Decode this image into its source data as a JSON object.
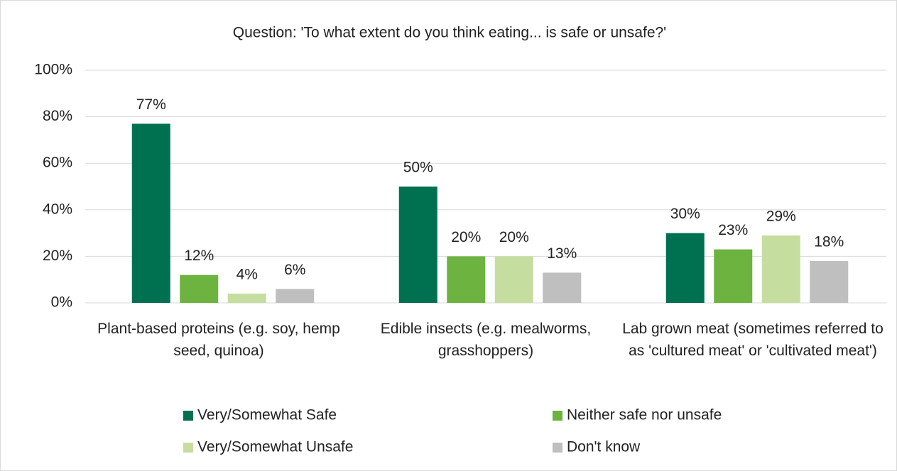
{
  "chart_data": {
    "type": "bar",
    "title": "Question: 'To what extent do you think eating... is safe or unsafe?'",
    "categories": [
      "Plant-based proteins (e.g. soy, hemp seed, quinoa)",
      "Edible insects (e.g. mealworms, grasshoppers)",
      "Lab grown meat (sometimes referred to as 'cultured meat' or 'cultivated meat')"
    ],
    "series": [
      {
        "name": "Very/Somewhat Safe",
        "color": "#007150",
        "values": [
          77,
          50,
          30
        ],
        "value_labels": [
          "77%",
          "50%",
          "30%"
        ]
      },
      {
        "name": "Neither safe nor unsafe",
        "color": "#6db33f",
        "values": [
          12,
          20,
          23
        ],
        "value_labels": [
          "12%",
          "20%",
          "23%"
        ]
      },
      {
        "name": "Very/Somewhat Unsafe",
        "color": "#c5dea0",
        "values": [
          4,
          20,
          29
        ],
        "value_labels": [
          "4%",
          "20%",
          "29%"
        ]
      },
      {
        "name": "Don't know",
        "color": "#bfbfbf",
        "values": [
          6,
          13,
          18
        ],
        "value_labels": [
          "6%",
          "13%",
          "18%"
        ]
      }
    ],
    "ylim": [
      0,
      100
    ],
    "yticks": [
      {
        "value": 0,
        "label": "0%"
      },
      {
        "value": 20,
        "label": "20%"
      },
      {
        "value": 40,
        "label": "40%"
      },
      {
        "value": 60,
        "label": "60%"
      },
      {
        "value": 80,
        "label": "80%"
      },
      {
        "value": 100,
        "label": "100%"
      }
    ],
    "grid": true
  }
}
